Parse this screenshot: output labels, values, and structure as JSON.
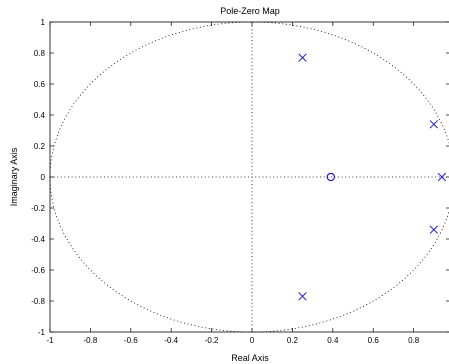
{
  "chart_data": {
    "type": "scatter",
    "title": "Pole-Zero Map",
    "xlabel": "Real Axis",
    "ylabel": "Imaginary Axis",
    "xlim": [
      -1,
      0.98
    ],
    "ylim": [
      -1,
      1
    ],
    "x_ticks": [
      -1,
      -0.8,
      -0.6,
      -0.4,
      -0.2,
      0,
      0.2,
      0.4,
      0.6,
      0.8
    ],
    "x_tick_labels": [
      "-1",
      "-0.8",
      "-0.6",
      "-0.4",
      "-0.2",
      "0",
      "0.2",
      "0.4",
      "0.6",
      "0.8"
    ],
    "y_ticks": [
      1,
      0.8,
      0.6,
      0.4,
      0.2,
      0,
      -0.2,
      -0.4,
      -0.6,
      -0.8,
      -1
    ],
    "y_tick_labels": [
      "1",
      "0.8",
      "0.6",
      "0.4",
      "0.2",
      "0",
      "-0.2",
      "-0.4",
      "-0.6",
      "-0.8",
      "-1"
    ],
    "grid": false,
    "unit_circle": true,
    "series": [
      {
        "marker": "x",
        "color": "#2020c0",
        "points": [
          {
            "x": 0.25,
            "y": 0.77
          },
          {
            "x": 0.25,
            "y": -0.77
          },
          {
            "x": 0.9,
            "y": 0.34
          },
          {
            "x": 0.9,
            "y": -0.34
          },
          {
            "x": 0.94,
            "y": 0
          }
        ]
      },
      {
        "marker": "o",
        "color": "#2020c0",
        "points": [
          {
            "x": 0.39,
            "y": 0
          }
        ]
      }
    ]
  }
}
